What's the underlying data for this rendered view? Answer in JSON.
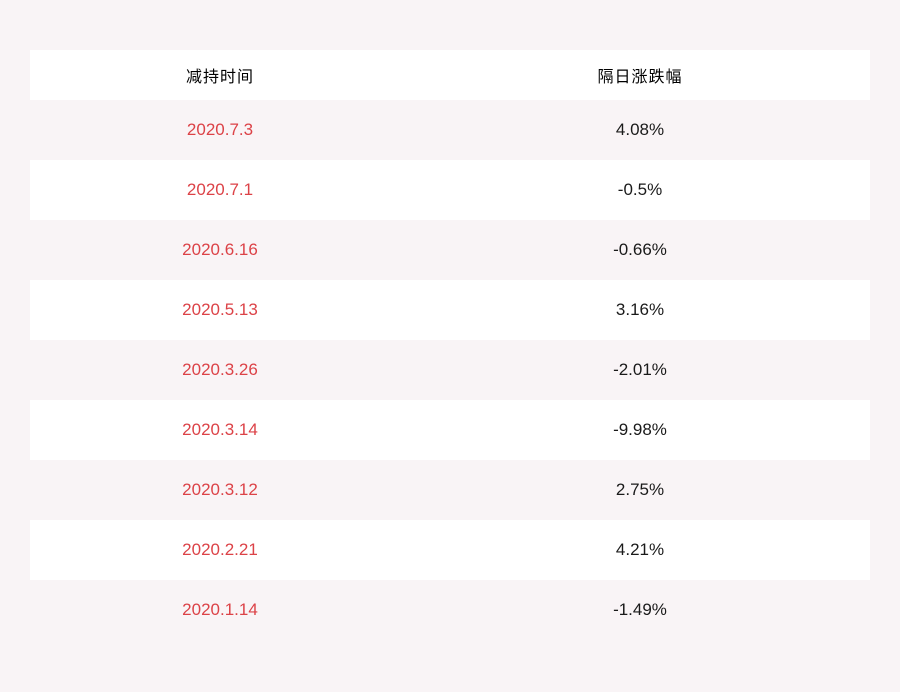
{
  "colors": {
    "page_background": "#f9f4f6",
    "row_white": "#ffffff",
    "date_red": "#dc4247",
    "value_black": "#1a1a1a"
  },
  "chart_data": {
    "type": "table",
    "columns": [
      "减持时间",
      "隔日涨跌幅"
    ],
    "rows": [
      [
        "2020.7.3",
        "4.08%"
      ],
      [
        "2020.7.1",
        "-0.5%"
      ],
      [
        "2020.6.16",
        "-0.66%"
      ],
      [
        "2020.5.13",
        "3.16%"
      ],
      [
        "2020.3.26",
        "-2.01%"
      ],
      [
        "2020.3.14",
        "-9.98%"
      ],
      [
        "2020.3.12",
        "2.75%"
      ],
      [
        "2020.2.21",
        "4.21%"
      ],
      [
        "2020.1.14",
        "-1.49%"
      ]
    ]
  }
}
